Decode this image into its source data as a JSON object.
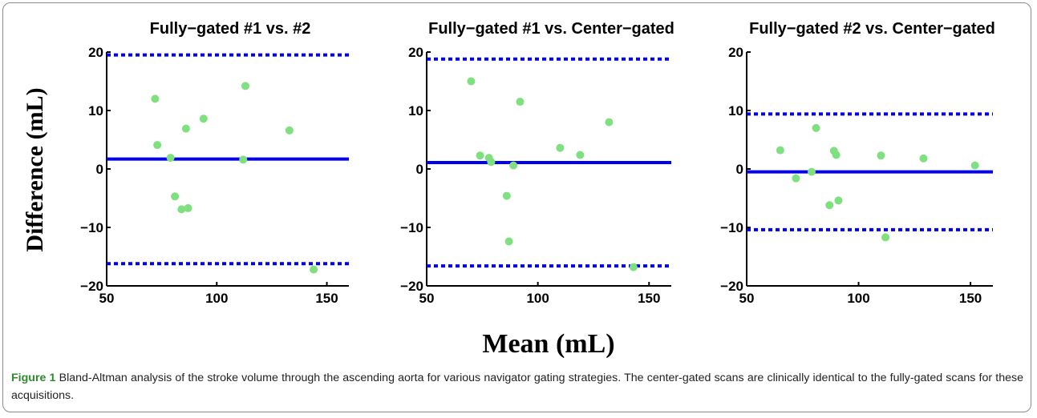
{
  "figure": {
    "caption_label": "Figure 1",
    "caption_text": " Bland-Altman analysis of the stroke volume through the ascending aorta for various navigator gating strategies. The center-gated scans are clinically identical to the fully-gated scans for these acquisitions.",
    "shared_xlabel": "Mean (mL)",
    "shared_ylabel": "Difference (mL)"
  },
  "colors": {
    "line": "#0000ee",
    "point": "#7ee07e",
    "caption_label": "#2e8b2e"
  },
  "chart_data": [
    {
      "type": "scatter",
      "title": "Fully−gated #1 vs. #2",
      "xlim": [
        50,
        160
      ],
      "ylim": [
        -20,
        20
      ],
      "xticks": [
        50,
        100,
        150
      ],
      "yticks": [
        -20,
        -10,
        0,
        10,
        20
      ],
      "xtick_labels": [
        "50",
        "100",
        "150"
      ],
      "ytick_labels": [
        "−20",
        "−10",
        "0",
        "10",
        "20"
      ],
      "mean_difference": 1.7,
      "limits_of_agreement": [
        -16.2,
        19.5
      ],
      "points": [
        {
          "x": 72,
          "y": 12.0
        },
        {
          "x": 73,
          "y": 4.1
        },
        {
          "x": 79,
          "y": 1.9
        },
        {
          "x": 81,
          "y": -4.7
        },
        {
          "x": 84,
          "y": -6.9
        },
        {
          "x": 86,
          "y": 6.9
        },
        {
          "x": 87,
          "y": -6.7
        },
        {
          "x": 94,
          "y": 8.6
        },
        {
          "x": 112,
          "y": 1.6
        },
        {
          "x": 113,
          "y": 14.2
        },
        {
          "x": 133,
          "y": 6.6
        },
        {
          "x": 144,
          "y": -17.2
        }
      ]
    },
    {
      "type": "scatter",
      "title": "Fully−gated #1 vs. Center−gated",
      "xlim": [
        50,
        160
      ],
      "ylim": [
        -20,
        20
      ],
      "xticks": [
        50,
        100,
        150
      ],
      "yticks": [
        -20,
        -10,
        0,
        10,
        20
      ],
      "xtick_labels": [
        "50",
        "100",
        "150"
      ],
      "ytick_labels": [
        "−20",
        "−10",
        "0",
        "10",
        "20"
      ],
      "mean_difference": 1.1,
      "limits_of_agreement": [
        -16.6,
        18.8
      ],
      "points": [
        {
          "x": 70,
          "y": 15.0
        },
        {
          "x": 74,
          "y": 2.3
        },
        {
          "x": 78,
          "y": 1.9
        },
        {
          "x": 79,
          "y": 1.2
        },
        {
          "x": 86,
          "y": -4.6
        },
        {
          "x": 87,
          "y": -12.4
        },
        {
          "x": 89,
          "y": 0.6
        },
        {
          "x": 92,
          "y": 11.5
        },
        {
          "x": 110,
          "y": 3.6
        },
        {
          "x": 119,
          "y": 2.4
        },
        {
          "x": 132,
          "y": 8.0
        },
        {
          "x": 143,
          "y": -16.8
        }
      ]
    },
    {
      "type": "scatter",
      "title": "Fully−gated #2 vs. Center−gated",
      "xlim": [
        50,
        160
      ],
      "ylim": [
        -20,
        20
      ],
      "xticks": [
        50,
        100,
        150
      ],
      "yticks": [
        -20,
        -10,
        0,
        10,
        20
      ],
      "xtick_labels": [
        "50",
        "100",
        "150"
      ],
      "ytick_labels": [
        "−20",
        "−10",
        "0",
        "10",
        "20"
      ],
      "mean_difference": -0.5,
      "limits_of_agreement": [
        -10.4,
        9.4
      ],
      "points": [
        {
          "x": 65,
          "y": 3.2
        },
        {
          "x": 72,
          "y": -1.6
        },
        {
          "x": 79,
          "y": -0.5
        },
        {
          "x": 81,
          "y": 7.0
        },
        {
          "x": 87,
          "y": -6.2
        },
        {
          "x": 89,
          "y": 3.1
        },
        {
          "x": 90,
          "y": 2.4
        },
        {
          "x": 91,
          "y": -5.4
        },
        {
          "x": 110,
          "y": 2.3
        },
        {
          "x": 112,
          "y": -11.7
        },
        {
          "x": 129,
          "y": 1.8
        },
        {
          "x": 152,
          "y": 0.6
        }
      ]
    }
  ]
}
